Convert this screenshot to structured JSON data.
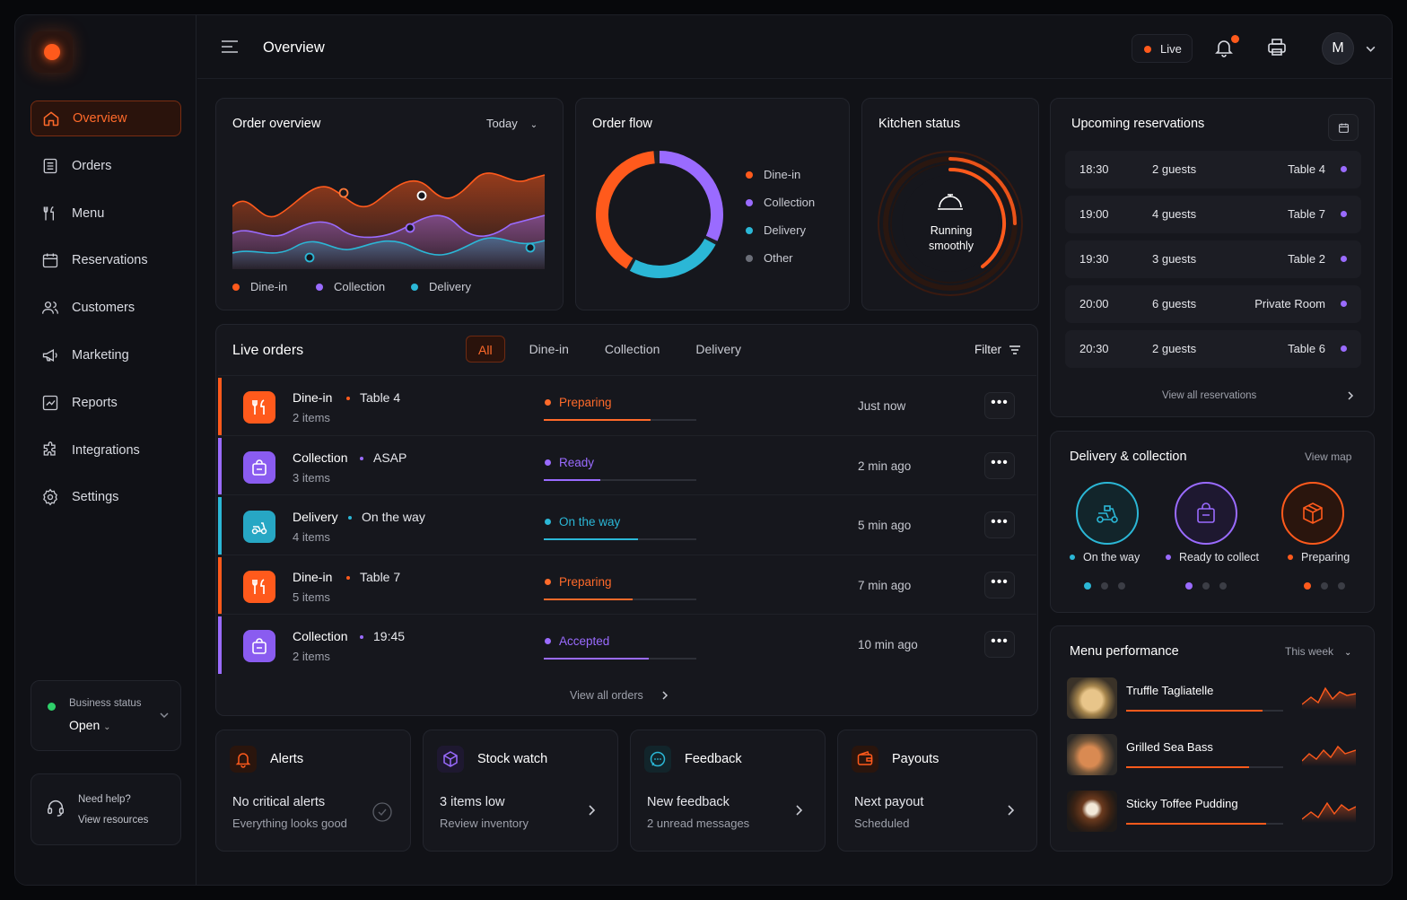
{
  "header": {
    "title": "Overview",
    "live_label": "Live",
    "avatar_initial": "M"
  },
  "sidebar": {
    "items": [
      {
        "label": "Overview",
        "icon": "home-icon"
      },
      {
        "label": "Orders",
        "icon": "list-icon"
      },
      {
        "label": "Menu",
        "icon": "utensils-icon"
      },
      {
        "label": "Reservations",
        "icon": "calendar-icon"
      },
      {
        "label": "Customers",
        "icon": "users-icon"
      },
      {
        "label": "Marketing",
        "icon": "megaphone-icon"
      },
      {
        "label": "Reports",
        "icon": "chart-icon"
      },
      {
        "label": "Integrations",
        "icon": "puzzle-icon"
      },
      {
        "label": "Settings",
        "icon": "gear-icon"
      }
    ],
    "business_status": {
      "label": "Business status",
      "value": "Open"
    },
    "help": {
      "line1": "Need help?",
      "line2": "View resources"
    }
  },
  "order_overview": {
    "title": "Order overview",
    "period": "Today",
    "legend": [
      "Dine-in",
      "Collection",
      "Delivery"
    ]
  },
  "order_flow": {
    "title": "Order flow",
    "legend": [
      "Dine-in",
      "Collection",
      "Delivery",
      "Other"
    ]
  },
  "kitchen": {
    "title": "Kitchen status",
    "status_line1": "Running",
    "status_line2": "smoothly"
  },
  "live_orders": {
    "title": "Live orders",
    "tabs": [
      "All",
      "Dine-in",
      "Collection",
      "Delivery"
    ],
    "filter_label": "Filter",
    "view_all": "View all orders",
    "rows": [
      {
        "type": "Dine-in",
        "detail": "Table 4",
        "items": "2 items",
        "status": "Preparing",
        "time": "Just now",
        "progress": 0.7
      },
      {
        "type": "Collection",
        "detail": "ASAP",
        "items": "3 items",
        "status": "Ready",
        "time": "2 min ago",
        "progress": 0.37
      },
      {
        "type": "Delivery",
        "detail": "On the way",
        "items": "4 items",
        "status": "On the way",
        "time": "5 min ago",
        "progress": 0.62
      },
      {
        "type": "Dine-in",
        "detail": "Table 7",
        "items": "5 items",
        "status": "Preparing",
        "time": "7 min ago",
        "progress": 0.58
      },
      {
        "type": "Collection",
        "detail": "19:45",
        "items": "2 items",
        "status": "Accepted",
        "time": "10 min ago",
        "progress": 0.69
      }
    ]
  },
  "reservations": {
    "title": "Upcoming reservations",
    "view_all": "View all reservations",
    "rows": [
      {
        "time": "18:30",
        "guests": "2 guests",
        "table": "Table 4"
      },
      {
        "time": "19:00",
        "guests": "4 guests",
        "table": "Table 7"
      },
      {
        "time": "19:30",
        "guests": "3 guests",
        "table": "Table 2"
      },
      {
        "time": "20:00",
        "guests": "6 guests",
        "table": "Private Room"
      },
      {
        "time": "20:30",
        "guests": "2 guests",
        "table": "Table 6"
      }
    ]
  },
  "delivery": {
    "title": "Delivery & collection",
    "view_map": "View map",
    "items": [
      {
        "label": "On the way",
        "color": "#2bb7d6"
      },
      {
        "label": "Ready to collect",
        "color": "#9a6bff"
      },
      {
        "label": "Preparing",
        "color": "#ff5a1c"
      }
    ]
  },
  "bottom_cards": [
    {
      "title": "Alerts",
      "line1": "No critical alerts",
      "line2": "Everything looks good"
    },
    {
      "title": "Stock watch",
      "line1": "3 items low",
      "line2": "Review inventory"
    },
    {
      "title": "Feedback",
      "line1": "New feedback",
      "line2": "2 unread messages"
    },
    {
      "title": "Payouts",
      "line1": "Next payout",
      "line2": "Scheduled"
    }
  ],
  "menu_performance": {
    "title": "Menu performance",
    "period": "This week",
    "items": [
      {
        "name": "Truffle Tagliatelle",
        "progress": 0.87
      },
      {
        "name": "Grilled Sea Bass",
        "progress": 0.78
      },
      {
        "name": "Sticky Toffee Pudding",
        "progress": 0.89
      }
    ]
  },
  "colors": {
    "accent": "#ff5a1c",
    "collection": "#9a6bff",
    "delivery": "#2bb7d6",
    "other": "#6b6e78"
  }
}
